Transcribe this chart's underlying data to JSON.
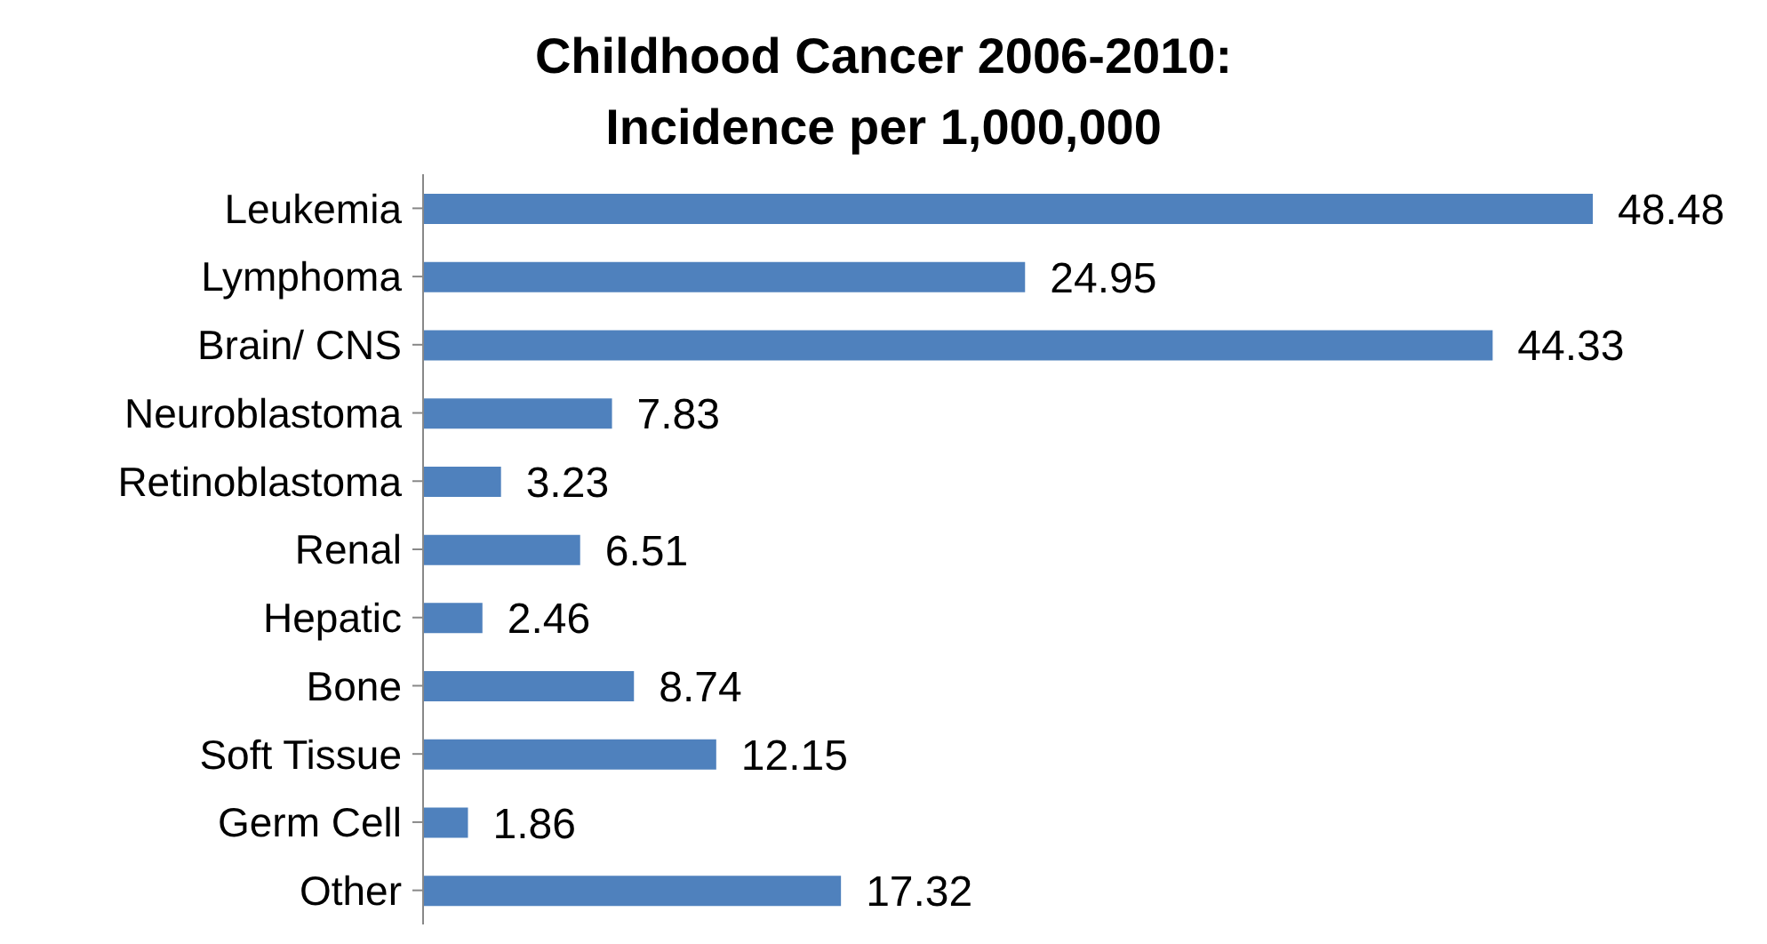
{
  "chart_data": {
    "type": "bar",
    "orientation": "horizontal",
    "title": "Childhood Cancer 2006-2010: Incidence per 1,000,000",
    "categories": [
      "Leukemia",
      "Lymphoma",
      "Brain/ CNS",
      "Neuroblastoma",
      "Retinoblastoma",
      "Renal",
      "Hepatic",
      "Bone",
      "Soft Tissue",
      "Germ Cell",
      "Other"
    ],
    "values": [
      48.48,
      24.95,
      44.33,
      7.83,
      3.23,
      6.51,
      2.46,
      8.74,
      12.15,
      1.86,
      17.32
    ],
    "color": "#4f81bd",
    "data_labels": true,
    "grid": false,
    "legend": false
  }
}
